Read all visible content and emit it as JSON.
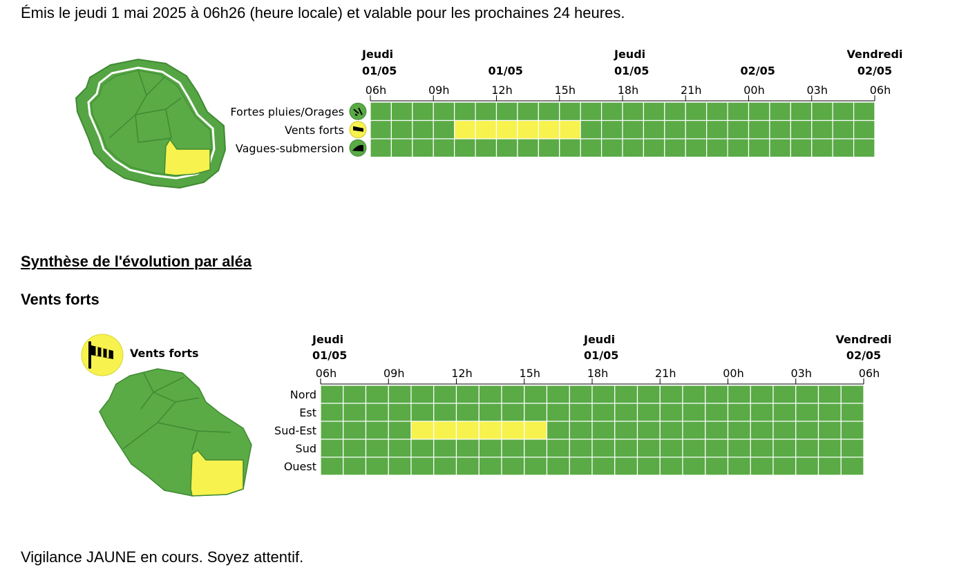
{
  "header": {
    "issued": "Émis le jeudi 1 mai 2025 à 06h26 (heure locale) et valable pour les prochaines 24 heures."
  },
  "colors": {
    "green": "#5aaa46",
    "yellow": "#f7f24d",
    "map_border": "#3f8a33",
    "map_outer": "#56a544"
  },
  "overview": {
    "dates": [
      {
        "day": "Jeudi",
        "date": "01/05"
      },
      {
        "day": "",
        "date": "01/05"
      },
      {
        "day": "Jeudi",
        "date": "01/05"
      },
      {
        "day": "",
        "date": "02/05"
      },
      {
        "day": "Vendredi",
        "date": "02/05"
      }
    ],
    "hours": [
      "06h",
      "09h",
      "12h",
      "15h",
      "18h",
      "21h",
      "00h",
      "03h",
      "06h"
    ],
    "rows": [
      {
        "label": "Fortes pluies/Orages",
        "icon": "rain-storm-icon",
        "yellow_from": null,
        "yellow_to": null
      },
      {
        "label": "Vents forts",
        "icon": "windsock-icon",
        "yellow_from": 4,
        "yellow_to": 10
      },
      {
        "label": "Vagues-submersion",
        "icon": "wave-icon",
        "yellow_from": null,
        "yellow_to": null
      }
    ]
  },
  "section": {
    "title": "Synthèse de l'évolution par aléa",
    "subtitle": "Vents forts"
  },
  "detail": {
    "legend": "Vents forts",
    "dates": [
      {
        "day": "Jeudi",
        "date": "01/05"
      },
      {
        "day": "Jeudi",
        "date": "01/05"
      },
      {
        "day": "Vendredi",
        "date": "02/05"
      }
    ],
    "hours": [
      "06h",
      "09h",
      "12h",
      "15h",
      "18h",
      "21h",
      "00h",
      "03h",
      "06h"
    ],
    "rows": [
      {
        "label": "Nord",
        "yellow_from": null,
        "yellow_to": null
      },
      {
        "label": "Est",
        "yellow_from": null,
        "yellow_to": null
      },
      {
        "label": "Sud-Est",
        "yellow_from": 4,
        "yellow_to": 10
      },
      {
        "label": "Sud",
        "yellow_from": null,
        "yellow_to": null
      },
      {
        "label": "Ouest",
        "yellow_from": null,
        "yellow_to": null
      }
    ]
  },
  "footer": {
    "vigilance": "Vigilance JAUNE en cours. Soyez attentif."
  }
}
